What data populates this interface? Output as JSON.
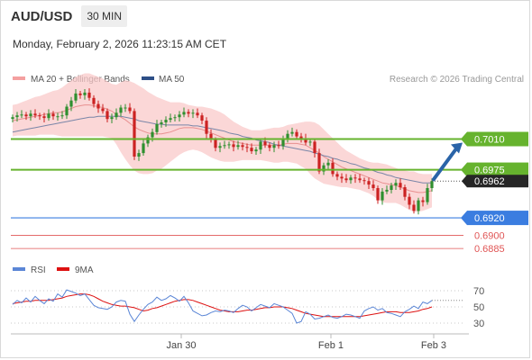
{
  "header": {
    "symbol": "AUD/USD",
    "timeframe": "30 MIN"
  },
  "datetime": "Monday, February 2, 2026 11:23:15 AM CET",
  "legend": {
    "ma20_label": "MA 20 + Bollinger Bands",
    "ma50_label": "MA 50",
    "copyright": "Research © 2026 Trading Central",
    "rsi_label": "RSI",
    "rsi_ma_label": "9MA"
  },
  "colors": {
    "up": "#2f8f2f",
    "down": "#cc2222",
    "band": "#f9c9c9",
    "ma20": "#e89090",
    "ma50": "#7a86a8",
    "resistance": "#66b32e",
    "support": "#3b7de0",
    "support_red": "#e05555",
    "rsi": "#5b86d6",
    "rsi_ma": "#dd1111",
    "arrow": "#2a64a8"
  },
  "chart_data": [
    {
      "type": "candlestick",
      "title": "AUD/USD 30 MIN",
      "x_tick_labels": [
        "Jan 30",
        "Feb 1",
        "Feb 3"
      ],
      "ylim": [
        0.688,
        0.7065
      ],
      "current_price": 0.6962,
      "current_price_label": "0.6962",
      "levels": [
        {
          "value": 0.701,
          "label": "0.7010",
          "kind": "resistance",
          "color": "#66b32e"
        },
        {
          "value": 0.6975,
          "label": "0.6975",
          "kind": "resistance",
          "color": "#66b32e"
        },
        {
          "value": 0.692,
          "label": "0.6920",
          "kind": "support",
          "color": "#3b7de0"
        },
        {
          "value": 0.69,
          "label": "0.6900",
          "kind": "support",
          "color": "#e05555"
        },
        {
          "value": 0.6885,
          "label": "0.6885",
          "kind": "support",
          "color": "#e05555"
        }
      ],
      "close": [
        0.7035,
        0.7037,
        0.7038,
        0.7036,
        0.7039,
        0.7037,
        0.7036,
        0.7034,
        0.7039,
        0.7036,
        0.7036,
        0.7037,
        0.7047,
        0.7054,
        0.7062,
        0.706,
        0.7063,
        0.7057,
        0.705,
        0.7045,
        0.7042,
        0.7033,
        0.7035,
        0.704,
        0.7046,
        0.7046,
        0.7042,
        0.699,
        0.6994,
        0.7005,
        0.7012,
        0.7018,
        0.7027,
        0.7029,
        0.7032,
        0.7034,
        0.7035,
        0.7038,
        0.7041,
        0.7039,
        0.704,
        0.7037,
        0.7031,
        0.7016,
        0.7009,
        0.7,
        0.7002,
        0.7003,
        0.7004,
        0.7001,
        0.7003,
        0.7001,
        0.7,
        0.6996,
        0.6998,
        0.7007,
        0.7003,
        0.7,
        0.7003,
        0.7002,
        0.7011,
        0.7016,
        0.7018,
        0.7013,
        0.7011,
        0.7006,
        0.7007,
        0.6994,
        0.6973,
        0.698,
        0.6983,
        0.697,
        0.6967,
        0.6965,
        0.6963,
        0.6966,
        0.6965,
        0.6963,
        0.6962,
        0.6958,
        0.6954,
        0.694,
        0.695,
        0.6952,
        0.6957,
        0.696,
        0.6955,
        0.6944,
        0.6935,
        0.6928,
        0.694,
        0.6938,
        0.6954,
        0.6962
      ],
      "ma20": [
        0.7031,
        0.7032,
        0.7033,
        0.7034,
        0.7035,
        0.7036,
        0.7037,
        0.7038,
        0.7039,
        0.704,
        0.704,
        0.7041,
        0.7043,
        0.7045,
        0.7047,
        0.7048,
        0.7049,
        0.7049,
        0.7048,
        0.7047,
        0.7046,
        0.7044,
        0.7042,
        0.7038,
        0.7035,
        0.7032,
        0.7028,
        0.7024,
        0.7021,
        0.7019,
        0.7017,
        0.7016,
        0.7016,
        0.7016,
        0.7017,
        0.7018,
        0.702,
        0.7022,
        0.7023,
        0.7023,
        0.7023,
        0.7022,
        0.7021,
        0.7019,
        0.7017,
        0.7015,
        0.7013,
        0.7011,
        0.7009,
        0.7007,
        0.7006,
        0.7005,
        0.7004,
        0.7003,
        0.7003,
        0.7003,
        0.7003,
        0.7003,
        0.7003,
        0.7003,
        0.7004,
        0.7005,
        0.7005,
        0.7005,
        0.7004,
        0.7003,
        0.7,
        0.6997,
        0.6994,
        0.699,
        0.6987,
        0.6984,
        0.6981,
        0.6978,
        0.6976,
        0.6974,
        0.6972,
        0.697,
        0.6968,
        0.6966,
        0.6964,
        0.6962,
        0.696,
        0.6959,
        0.6958,
        0.6957,
        0.6955,
        0.6953,
        0.6951,
        0.695,
        0.6949,
        0.6949,
        0.695,
        0.6951
      ],
      "ma50": [
        0.7018,
        0.7019,
        0.702,
        0.7021,
        0.7022,
        0.7023,
        0.7024,
        0.7025,
        0.7026,
        0.7027,
        0.7028,
        0.7029,
        0.703,
        0.7031,
        0.7032,
        0.7033,
        0.7034,
        0.7035,
        0.7035,
        0.7036,
        0.7036,
        0.7036,
        0.7036,
        0.7036,
        0.7036,
        0.7035,
        0.7034,
        0.7033,
        0.7031,
        0.703,
        0.7029,
        0.7028,
        0.7027,
        0.7027,
        0.7026,
        0.7026,
        0.7026,
        0.7026,
        0.7026,
        0.7026,
        0.7025,
        0.7025,
        0.7024,
        0.7023,
        0.7022,
        0.7021,
        0.702,
        0.7019,
        0.7017,
        0.7016,
        0.7015,
        0.7013,
        0.7012,
        0.7011,
        0.7009,
        0.7008,
        0.7007,
        0.7006,
        0.7004,
        0.7003,
        0.7002,
        0.7001,
        0.7,
        0.6999,
        0.6998,
        0.6997,
        0.6996,
        0.6994,
        0.6993,
        0.6991,
        0.699,
        0.6988,
        0.6987,
        0.6985,
        0.6984,
        0.6982,
        0.6981,
        0.6979,
        0.6977,
        0.6976,
        0.6974,
        0.6972,
        0.6971,
        0.6969,
        0.6968,
        0.6966,
        0.6965,
        0.6964,
        0.6963,
        0.6962,
        0.6961,
        0.696,
        0.696,
        0.696
      ],
      "bb_width": [
        0.0018,
        0.0018,
        0.0019,
        0.002,
        0.0021,
        0.0022,
        0.0022,
        0.0023,
        0.0024,
        0.0025,
        0.0026,
        0.0028,
        0.003,
        0.0032,
        0.0034,
        0.0035,
        0.0036,
        0.0036,
        0.0035,
        0.0034,
        0.0033,
        0.0032,
        0.0031,
        0.0034,
        0.004,
        0.0045,
        0.0048,
        0.005,
        0.005,
        0.0049,
        0.0047,
        0.0045,
        0.0042,
        0.004,
        0.0037,
        0.0034,
        0.0032,
        0.003,
        0.0028,
        0.0026,
        0.0025,
        0.0025,
        0.0026,
        0.0027,
        0.0028,
        0.0028,
        0.0028,
        0.0027,
        0.0025,
        0.0023,
        0.0021,
        0.0019,
        0.0018,
        0.0017,
        0.0017,
        0.0017,
        0.0018,
        0.0019,
        0.002,
        0.002,
        0.002,
        0.0021,
        0.0022,
        0.0023,
        0.0025,
        0.0027,
        0.003,
        0.0032,
        0.0032,
        0.0031,
        0.0029,
        0.0027,
        0.0025,
        0.0023,
        0.0021,
        0.002,
        0.0019,
        0.0018,
        0.0018,
        0.0018,
        0.0019,
        0.0021,
        0.0022,
        0.0022,
        0.0021,
        0.002,
        0.002,
        0.0021,
        0.0022,
        0.0023,
        0.0022,
        0.0021,
        0.002,
        0.0019
      ]
    },
    {
      "type": "line",
      "title": "RSI",
      "y_tick_labels": [
        "70",
        "50",
        "30"
      ],
      "ylim": [
        20,
        80
      ],
      "series": [
        {
          "name": "RSI",
          "values": [
            53,
            58,
            55,
            61,
            56,
            63,
            58,
            54,
            60,
            57,
            66,
            62,
            71,
            69,
            67,
            64,
            66,
            59,
            52,
            49,
            48,
            47,
            50,
            56,
            58,
            57,
            41,
            32,
            40,
            47,
            53,
            56,
            62,
            58,
            60,
            64,
            61,
            57,
            63,
            55,
            45,
            42,
            39,
            40,
            43,
            45,
            44,
            46,
            45,
            43,
            48,
            52,
            50,
            45,
            49,
            53,
            51,
            49,
            54,
            52,
            50,
            46,
            42,
            30,
            32,
            44,
            41,
            35,
            36,
            38,
            40,
            37,
            36,
            38,
            41,
            40,
            38,
            36,
            45,
            48,
            50,
            46,
            48,
            43,
            42,
            40,
            38,
            44,
            47,
            51,
            48,
            56,
            54,
            58
          ]
        },
        {
          "name": "9MA",
          "values": [
            54,
            55,
            56,
            57,
            57,
            58,
            58,
            58,
            58,
            59,
            60,
            61,
            63,
            64,
            65,
            66,
            66,
            65,
            63,
            60,
            57,
            55,
            53,
            52,
            51,
            51,
            50,
            49,
            47,
            45,
            46,
            48,
            49,
            51,
            53,
            55,
            57,
            58,
            59,
            59,
            58,
            56,
            54,
            52,
            50,
            48,
            46,
            45,
            44,
            44,
            44,
            45,
            46,
            46,
            47,
            48,
            49,
            49,
            50,
            50,
            50,
            49,
            48,
            46,
            44,
            42,
            41,
            40,
            39,
            38,
            38,
            38,
            38,
            38,
            38,
            38,
            38,
            38,
            39,
            40,
            41,
            42,
            43,
            44,
            44,
            44,
            43,
            43,
            43,
            44,
            45,
            47,
            48,
            50
          ]
        }
      ]
    }
  ]
}
